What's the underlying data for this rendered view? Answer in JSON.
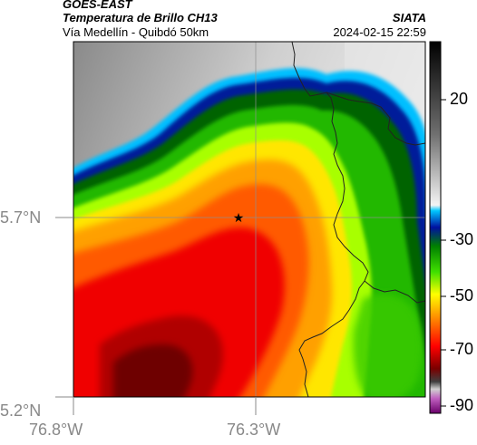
{
  "header": {
    "satellite": "GOES-EAST",
    "product": "Temperatura de Brillo CH13",
    "region": "Vía Medellín - Quibdó 50km",
    "agency": "SIATA",
    "datetime": "2024-02-15 22:59"
  },
  "axes": {
    "lat_ticks": [
      "5.7°N",
      "5.2°N"
    ],
    "lon_ticks": [
      "76.8°W",
      "76.3°W"
    ]
  },
  "colorbar": {
    "tick_labels": [
      "20",
      "-30",
      "-50",
      "-70",
      "-90"
    ]
  },
  "map": {
    "marker": "star-marker",
    "gridlines": true
  }
}
